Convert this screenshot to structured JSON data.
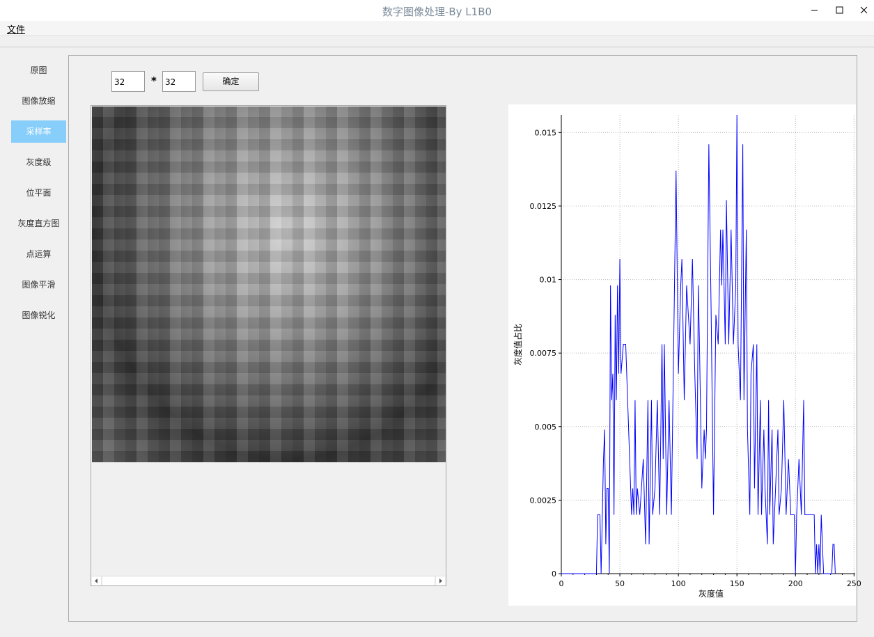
{
  "window": {
    "title": "数字图像处理-By L1B0"
  },
  "menu": [
    "文件"
  ],
  "nav": {
    "items": [
      "原图",
      "图像放缩",
      "采样率",
      "灰度级",
      "位平面",
      "灰度直方图",
      "点运算",
      "图像平滑",
      "图像锐化"
    ],
    "selected": 2
  },
  "controls": {
    "width": "32",
    "separator": "*",
    "height": "32",
    "button": "确定"
  },
  "chart_data": {
    "type": "line",
    "x_label": "灰度值",
    "y_label": "灰度值占比",
    "x": [
      0,
      30,
      31,
      33,
      34,
      36,
      37,
      38,
      39,
      40,
      41,
      42,
      43,
      44,
      45,
      46,
      47,
      48,
      49,
      50,
      51,
      53,
      55,
      60,
      61,
      62,
      63,
      64,
      65,
      67,
      70,
      72,
      74,
      75,
      77,
      78,
      80,
      82,
      84,
      86,
      87,
      88,
      90,
      92,
      94,
      98,
      100,
      102,
      103,
      105,
      107,
      110,
      112,
      114,
      116,
      117,
      118,
      120,
      122,
      123,
      124,
      126,
      128,
      130,
      132,
      134,
      136,
      137,
      138,
      140,
      141,
      143,
      145,
      147,
      149,
      150,
      151,
      153,
      155,
      156,
      158,
      159,
      161,
      162,
      164,
      165,
      167,
      168,
      170,
      171,
      173,
      174,
      176,
      177,
      178,
      180,
      181,
      183,
      185,
      186,
      188,
      190,
      192,
      194,
      196,
      199,
      200,
      201,
      203,
      205,
      207,
      208,
      210,
      215,
      216,
      217,
      218,
      219,
      220,
      221,
      222,
      224,
      231,
      232,
      233,
      234
    ],
    "series": [
      {
        "name": "灰度直方图",
        "color": "#0000ff",
        "values": [
          0,
          0,
          0.002,
          0.002,
          0,
          0.0039,
          0.0049,
          0.001,
          0.0029,
          0.0029,
          0,
          0.0098,
          0.0059,
          0.0068,
          0.002,
          0.0088,
          0.0059,
          0.0098,
          0.0068,
          0.0107,
          0.0068,
          0.0078,
          0.0078,
          0.002,
          0.0029,
          0.002,
          0.0059,
          0.002,
          0.0029,
          0.002,
          0.0039,
          0.001,
          0.0059,
          0.001,
          0.0059,
          0.002,
          0.0029,
          0.0059,
          0.002,
          0.0078,
          0.0039,
          0.0078,
          0.002,
          0.0059,
          0.002,
          0.0137,
          0.0068,
          0.0098,
          0.0107,
          0.0059,
          0.0098,
          0.0078,
          0.0107,
          0.0068,
          0.0039,
          0.0098,
          0.0078,
          0.0029,
          0.0049,
          0.0039,
          0.0049,
          0.0146,
          0.0088,
          0.002,
          0.0088,
          0.0078,
          0.0117,
          0.0098,
          0.0117,
          0.0078,
          0.0127,
          0.0078,
          0.0117,
          0.0078,
          0.0098,
          0.0156,
          0.0078,
          0.0059,
          0.0146,
          0.0059,
          0.0117,
          0.0049,
          0.002,
          0.0068,
          0.0078,
          0.0029,
          0.0078,
          0.002,
          0.0059,
          0.002,
          0.0049,
          0.0029,
          0.001,
          0.0059,
          0.002,
          0.0049,
          0.001,
          0.0029,
          0.0049,
          0.002,
          0.0029,
          0.0059,
          0.002,
          0.0039,
          0.002,
          0.002,
          0,
          0.002,
          0.0039,
          0.002,
          0.0059,
          0.002,
          0.002,
          0.002,
          0.002,
          0,
          0.001,
          0,
          0.001,
          0,
          0.002,
          0,
          0,
          0.001,
          0.001,
          0
        ]
      }
    ],
    "xlim": [
      0,
      251
    ],
    "xticks": [
      0,
      50,
      100,
      150,
      200,
      250
    ],
    "ylim": [
      0,
      0.0156
    ],
    "yticks": [
      0,
      0.0025,
      0.005,
      0.0075,
      0.01,
      0.0125,
      0.015
    ],
    "grid": true
  }
}
